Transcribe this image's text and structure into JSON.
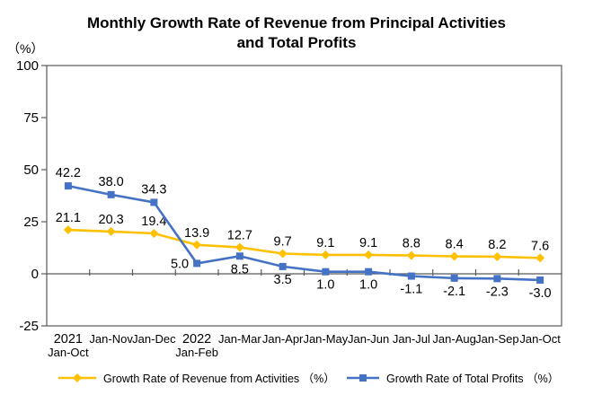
{
  "chart_data": {
    "type": "line",
    "title": "Monthly Growth Rate of Revenue from Principal Activities and Total Profits",
    "title_lines": [
      "Monthly Growth Rate of Revenue from Principal Activities",
      "and Total Profits"
    ],
    "y_unit": "（%）",
    "categories": [
      "2021\nJan-Oct",
      "Jan-Nov",
      "Jan-Dec",
      "2022\nJan-Feb",
      "Jan-Mar",
      "Jan-Apr",
      "Jan-May",
      "Jan-Jun",
      "Jan-Jul",
      "Jan-Aug",
      "Jan-Sep",
      "Jan-Oct"
    ],
    "series": [
      {
        "name": "Growth Rate of Revenue from Activities （%）",
        "color": "#FFC000",
        "marker": "diamond",
        "values": [
          21.1,
          20.3,
          19.4,
          13.9,
          12.7,
          9.7,
          9.1,
          9.1,
          8.8,
          8.4,
          8.2,
          7.6
        ]
      },
      {
        "name": "Growth Rate of Total Profits （%）",
        "color": "#4472C4",
        "marker": "square",
        "values": [
          42.2,
          38.0,
          34.3,
          5.0,
          8.5,
          3.5,
          1.0,
          1.0,
          -1.1,
          -2.1,
          -2.3,
          -3.0
        ]
      }
    ],
    "y_ticks": [
      100,
      75,
      50,
      25,
      0,
      -25
    ],
    "ylim": [
      -25,
      100
    ],
    "grid": false,
    "data_labels": true,
    "legend_position": "bottom",
    "axis_color": "#595959",
    "text_color": "#000000"
  }
}
